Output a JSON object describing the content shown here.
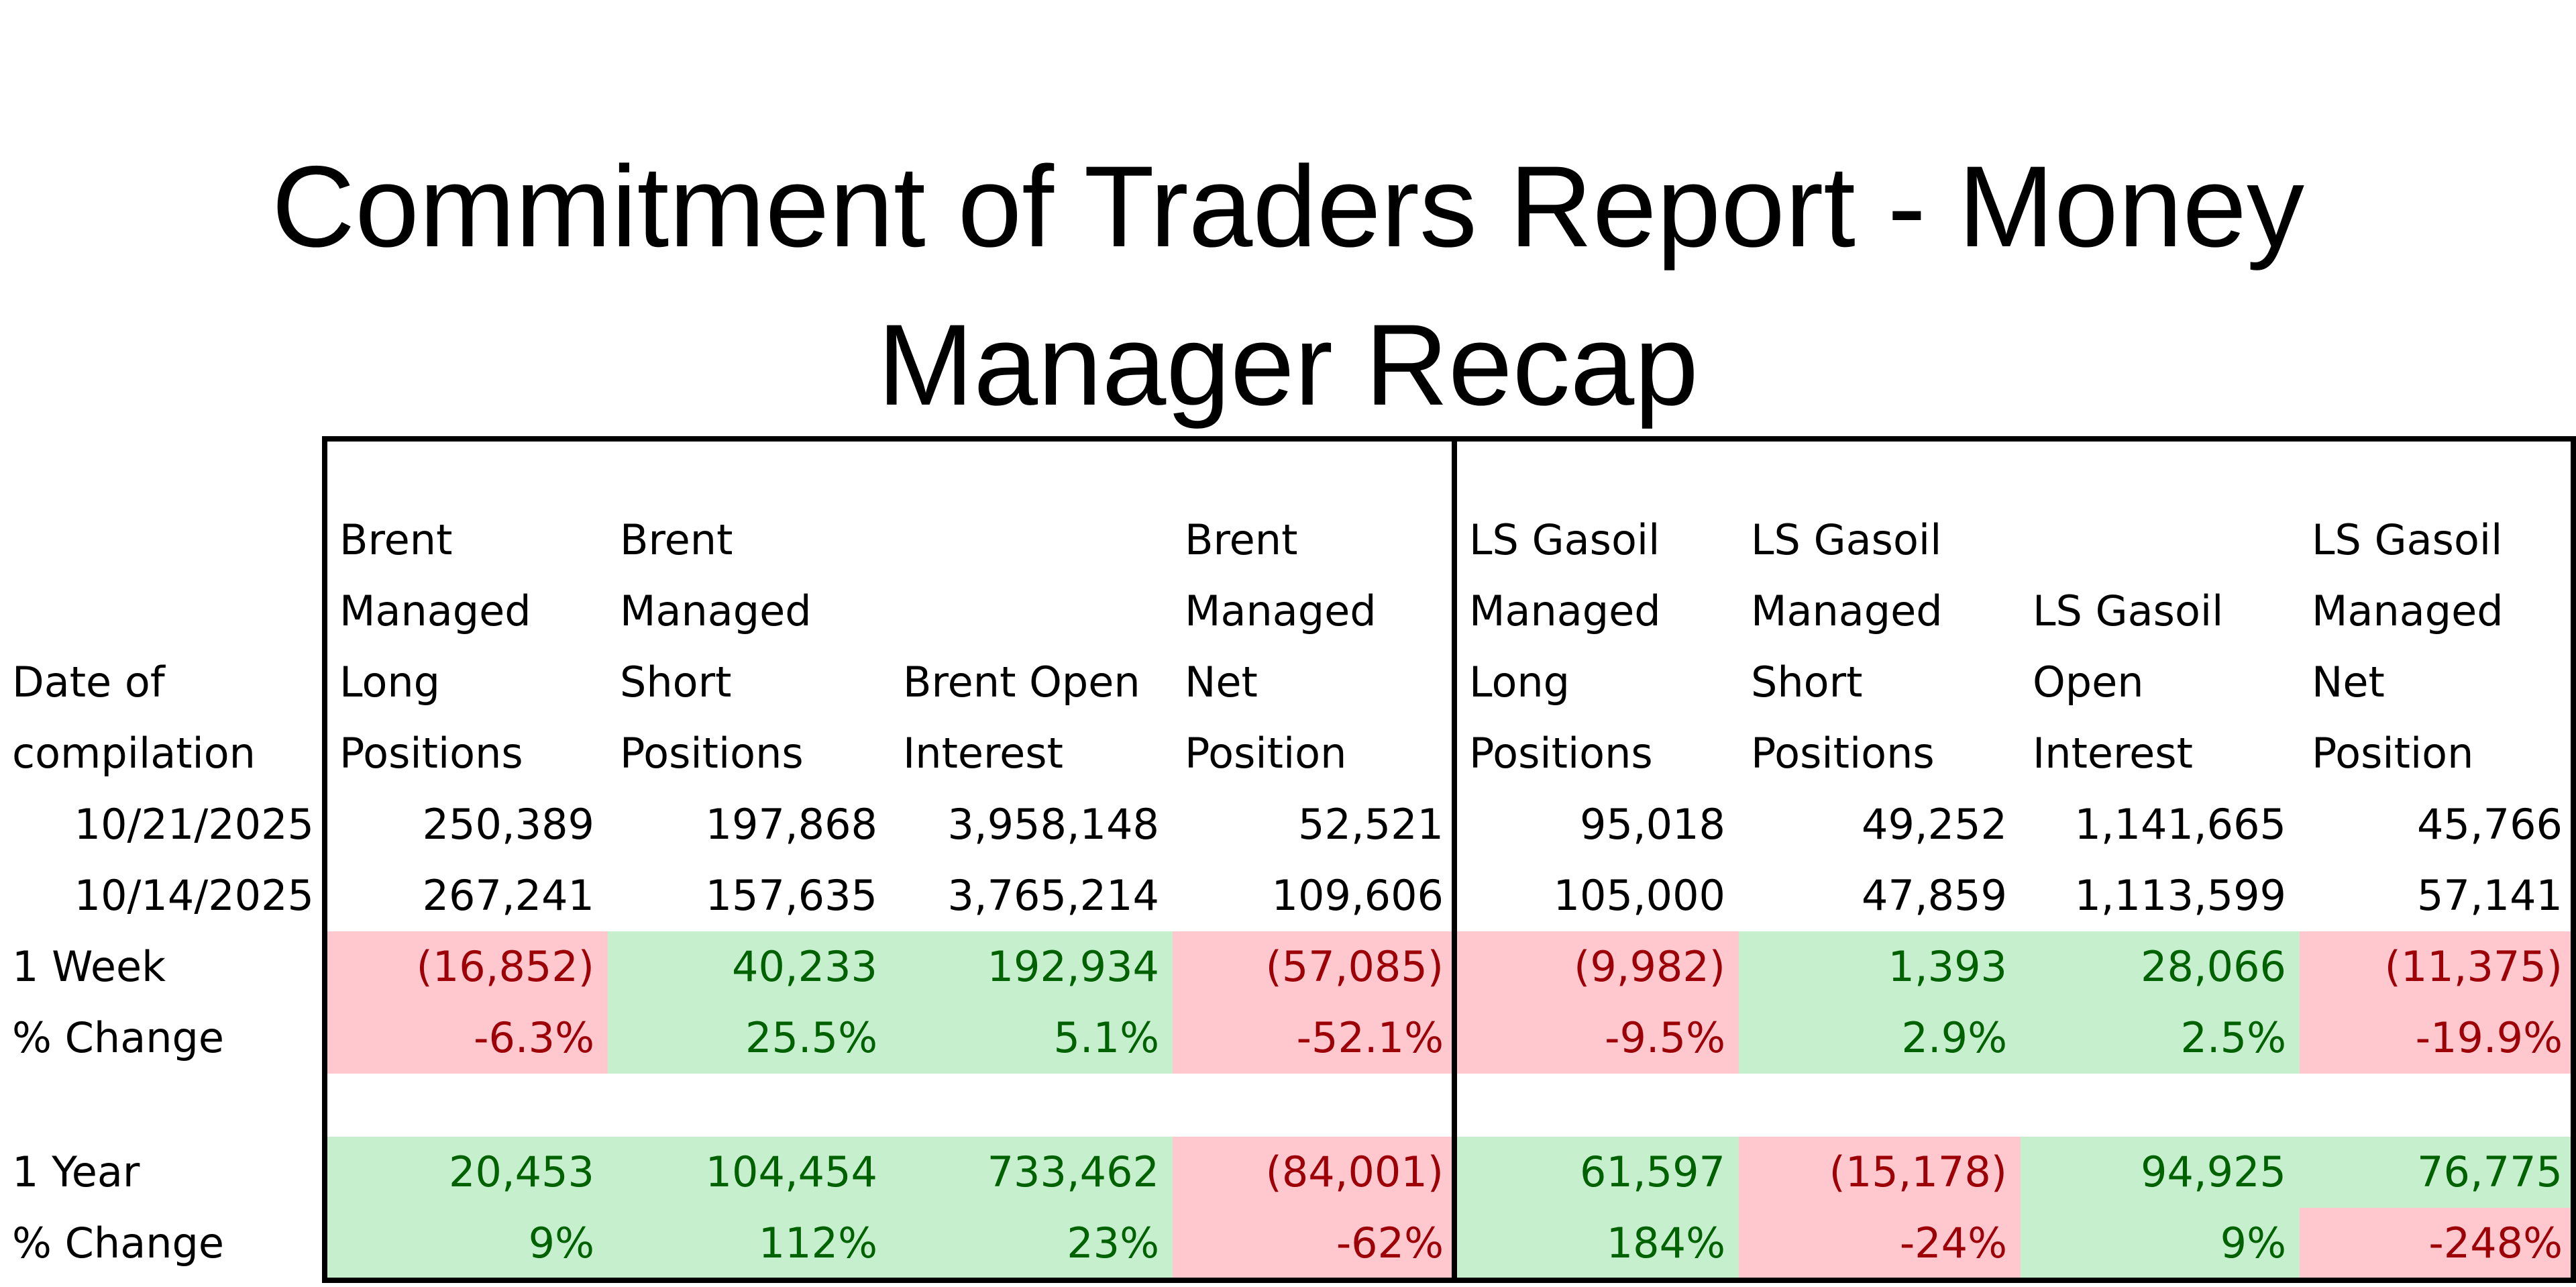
{
  "title_line1": "Commitment of Traders Report - Money",
  "title_line2": "Manager Recap",
  "colors": {
    "neg_bg": "#ffc7ce",
    "neg_text": "#9c0006",
    "pos_bg": "#c6efce",
    "pos_text": "#006100"
  },
  "headers": [
    [
      "Date of",
      "compilation"
    ],
    [
      "Brent",
      "Managed",
      "Long",
      "Positions"
    ],
    [
      "Brent",
      "Managed",
      "Short",
      "Positions"
    ],
    [
      "Brent Open",
      "Interest"
    ],
    [
      "Brent",
      "Managed",
      "Net",
      "Position"
    ],
    [
      "LS Gasoil",
      "Managed",
      "Long",
      "Positions"
    ],
    [
      "LS Gasoil",
      "Managed",
      "Short",
      "Positions"
    ],
    [
      "LS Gasoil",
      "Open",
      "Interest"
    ],
    [
      "LS Gasoil",
      "Managed",
      "Net",
      "Position"
    ]
  ],
  "rows": {
    "date1": [
      "10/21/2025",
      "250,389",
      "197,868",
      "3,958,148",
      "52,521",
      "95,018",
      "49,252",
      "1,141,665",
      "45,766"
    ],
    "date2": [
      "10/14/2025",
      "267,241",
      "157,635",
      "3,765,214",
      "109,606",
      "105,000",
      "47,859",
      "1,113,599",
      "57,141"
    ],
    "week_change": [
      "1 Week",
      "(16,852)",
      "40,233",
      "192,934",
      "(57,085)",
      "(9,982)",
      "1,393",
      "28,066",
      "(11,375)"
    ],
    "week_pct": [
      "% Change",
      "-6.3%",
      "25.5%",
      "5.1%",
      "-52.1%",
      "-9.5%",
      "2.9%",
      "2.5%",
      "-19.9%"
    ],
    "year_change": [
      "1 Year",
      "20,453",
      "104,454",
      "733,462",
      "(84,001)",
      "61,597",
      "(15,178)",
      "94,925",
      "76,775"
    ],
    "year_pct": [
      "% Change",
      "9%",
      "112%",
      "23%",
      "-62%",
      "184%",
      "-24%",
      "9%",
      "-248%"
    ]
  }
}
